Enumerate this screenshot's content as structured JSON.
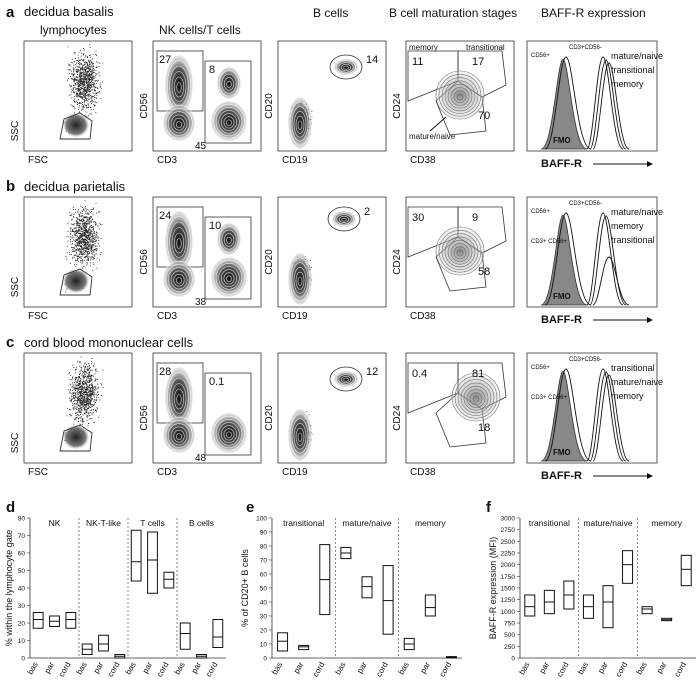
{
  "panel_letters": [
    "a",
    "b",
    "c",
    "d",
    "e",
    "f"
  ],
  "column_headers": [
    "lymphocytes",
    "NK cells/T cells",
    "B cells",
    "B cell maturation stages",
    "BAFF-R expression"
  ],
  "row_titles": [
    "decidua basalis",
    "decidua parietalis",
    "cord blood mononuclear cells"
  ],
  "axis_labels": {
    "ssc": "SSC",
    "fsc": "FSC",
    "cd56": "CD56",
    "cd3": "CD3",
    "cd20": "CD20",
    "cd19": "CD19",
    "cd24": "CD24",
    "cd38": "CD38",
    "baffr": "BAFF-R"
  },
  "flow_rows": [
    {
      "nk": {
        "q1": "27",
        "q2": "8",
        "q3": "45"
      },
      "b": "14",
      "mat": {
        "memory_label": "memory",
        "transitional_label": "transitional",
        "memory": "11",
        "transitional": "17",
        "mature": "70",
        "mature_label": "mature/naive"
      },
      "hist": {
        "labels": [
          "mature/naive",
          "transitional",
          "memory"
        ],
        "cd56": "CD56+",
        "cd3cd56": "CD3+CD56-",
        "fmo": "FMO"
      }
    },
    {
      "nk": {
        "q1": "24",
        "q2": "10",
        "q3": "38"
      },
      "b": "2",
      "mat": {
        "memory": "30",
        "transitional": "9",
        "mature": "58"
      },
      "hist": {
        "labels": [
          "mature/naive",
          "memory",
          "transitional"
        ],
        "cd56": "CD56+",
        "cd3cd56": "CD3+CD56-",
        "cd3cd56b": "CD3+ CD56+",
        "fmo": "FMO"
      }
    },
    {
      "nk": {
        "q1": "28",
        "q2": "0.1",
        "q3": "48"
      },
      "b": "12",
      "mat": {
        "memory": "0.4",
        "transitional": "81",
        "mature": "18"
      },
      "hist": {
        "labels": [
          "transitional",
          "mature/naive",
          "memory"
        ],
        "cd56": "CD56+",
        "cd3cd56": "CD3+CD56-",
        "cd3cd56b": "CD3+ CD56+",
        "fmo": "FMO"
      }
    }
  ],
  "chart_data": [
    {
      "type": "box",
      "ylabel": "% within the lymphocyte gate",
      "ylim": [
        0,
        80
      ],
      "yticks": [
        0,
        10,
        20,
        30,
        40,
        50,
        60,
        70,
        80
      ],
      "groups": [
        "NK",
        "NK-T-like",
        "T cells",
        "B cells"
      ],
      "categories": [
        "bas",
        "par",
        "cord"
      ],
      "series": [
        {
          "name": "NK",
          "boxes": [
            [
              17,
              22,
              26
            ],
            [
              18,
              21,
              24
            ],
            [
              17,
              22,
              26
            ]
          ]
        },
        {
          "name": "NK-T-like",
          "boxes": [
            [
              2,
              5,
              8
            ],
            [
              4,
              8,
              13
            ],
            [
              0,
              1,
              2
            ]
          ]
        },
        {
          "name": "T cells",
          "boxes": [
            [
              44,
              55,
              73
            ],
            [
              37,
              56,
              72
            ],
            [
              40,
              45,
              49
            ]
          ]
        },
        {
          "name": "B cells",
          "boxes": [
            [
              5,
              14,
              20
            ],
            [
              0,
              1,
              2
            ],
            [
              6,
              12,
              22
            ]
          ]
        }
      ]
    },
    {
      "type": "box",
      "ylabel": "% of CD20+ B cells",
      "ylim": [
        0,
        100
      ],
      "yticks": [
        0,
        10,
        20,
        30,
        40,
        50,
        60,
        70,
        80,
        90,
        100
      ],
      "groups": [
        "transitional",
        "mature/naive",
        "memory"
      ],
      "categories": [
        "bas",
        "par",
        "cord"
      ],
      "series": [
        {
          "name": "transitional",
          "boxes": [
            [
              5,
              12,
              18
            ],
            [
              6,
              8,
              9
            ],
            [
              31,
              56,
              81
            ]
          ]
        },
        {
          "name": "mature/naive",
          "boxes": [
            [
              71,
              75,
              79
            ],
            [
              43,
              51,
              58
            ],
            [
              17,
              41,
              66
            ]
          ]
        },
        {
          "name": "memory",
          "boxes": [
            [
              6,
              10,
              14
            ],
            [
              30,
              36,
              45
            ],
            [
              0,
              0.5,
              1
            ]
          ]
        }
      ]
    },
    {
      "type": "box",
      "ylabel": "BAFF-R expression (MFI)",
      "ylim": [
        0,
        3000
      ],
      "yticks": [
        0,
        250,
        500,
        750,
        1000,
        1250,
        1500,
        1750,
        2000,
        2250,
        2500,
        2750,
        3000
      ],
      "groups": [
        "transitional",
        "mature/naive",
        "memory"
      ],
      "categories": [
        "bas",
        "par",
        "cord"
      ],
      "series": [
        {
          "name": "transitional",
          "boxes": [
            [
              900,
              1100,
              1350
            ],
            [
              950,
              1200,
              1450
            ],
            [
              1050,
              1350,
              1650
            ]
          ]
        },
        {
          "name": "mature/naive",
          "boxes": [
            [
              850,
              1100,
              1350
            ],
            [
              650,
              1200,
              1550
            ],
            [
              1600,
              2000,
              2300
            ]
          ]
        },
        {
          "name": "memory",
          "boxes": [
            [
              950,
              1050,
              1100
            ],
            [
              800,
              820,
              850
            ],
            [
              1550,
              1900,
              2200
            ]
          ]
        }
      ]
    }
  ]
}
